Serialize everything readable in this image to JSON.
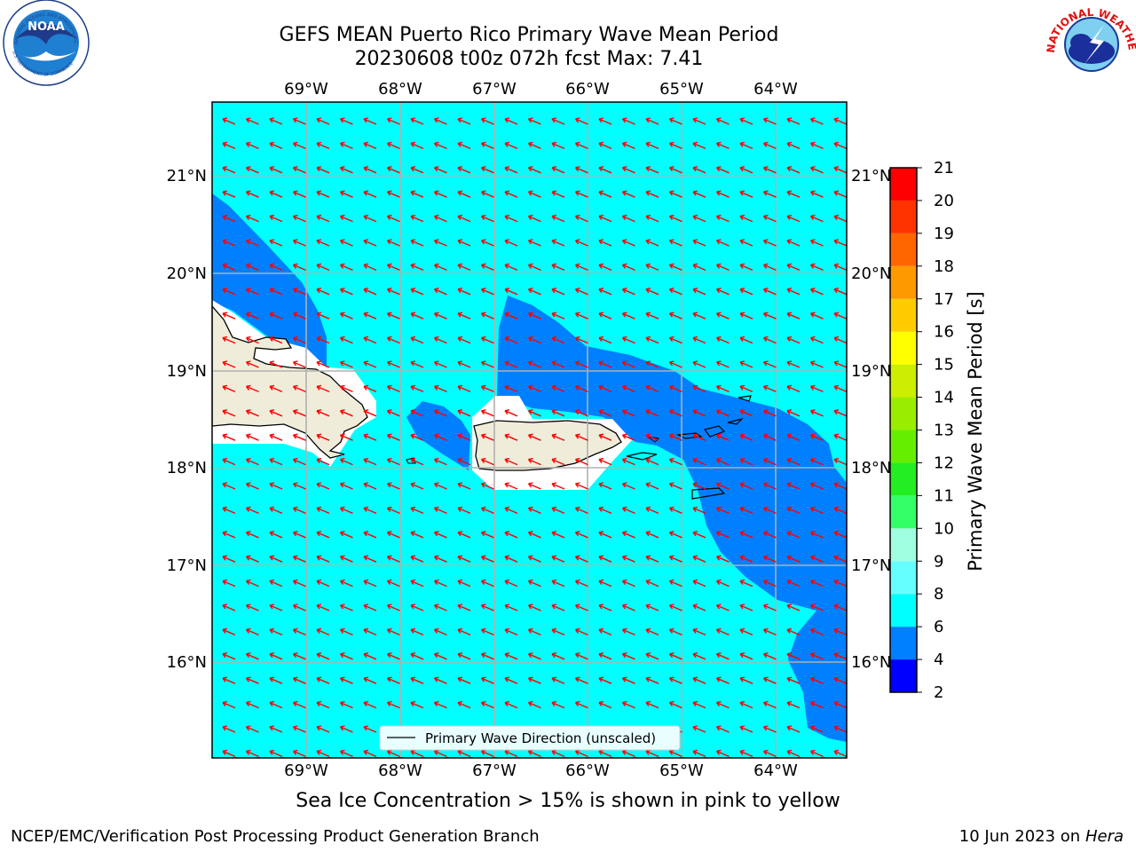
{
  "title_line1": "GEFS MEAN Puerto Rico Primary Wave Mean Period",
  "title_line2": "20230608 t00z 072h fcst   Max: 7.41",
  "map": {
    "lon_labels": [
      "69°W",
      "68°W",
      "67°W",
      "66°W",
      "65°W",
      "64°W"
    ],
    "lat_labels": [
      "21°N",
      "20°N",
      "19°N",
      "18°N",
      "17°N",
      "16°N"
    ],
    "legend_label": "Primary Wave Direction (unscaled)",
    "field_colors": {
      "ocean_6_8": "#00ffff",
      "ocean_4_6": "#0080ff",
      "land": "#efedda",
      "arrows": "#ff0000"
    }
  },
  "colorbar": {
    "label": "Primary Wave Mean Period [s]",
    "ticks": [
      "2",
      "4",
      "6",
      "8",
      "9",
      "10",
      "11",
      "12",
      "13",
      "14",
      "15",
      "16",
      "17",
      "18",
      "19",
      "20",
      "21"
    ],
    "colors": [
      "#0000ff",
      "#0080ff",
      "#00ffff",
      "#66ffff",
      "#a0ffe0",
      "#33ff66",
      "#22ee22",
      "#66ee00",
      "#99ee00",
      "#ccee00",
      "#ffff00",
      "#ffcc00",
      "#ff9900",
      "#ff6600",
      "#ff3300",
      "#ff0000"
    ]
  },
  "ice_note": "Sea Ice Concentration > 15% is shown in pink to yellow",
  "footer_left": "NCEP/EMC/Verification Post Processing Product Generation Branch",
  "footer_date": "10 Jun 2023 on",
  "footer_host": "Hera",
  "logos": {
    "noaa_text": "NOAA",
    "noaa_ring": "NATIONAL OCEANIC AND ATMOSPHERIC ADMINISTRATION",
    "noaa_ring_bottom": "U.S. DEPARTMENT OF COMMERCE",
    "nws_ring": "NATIONAL WEATHER SERVICE"
  }
}
